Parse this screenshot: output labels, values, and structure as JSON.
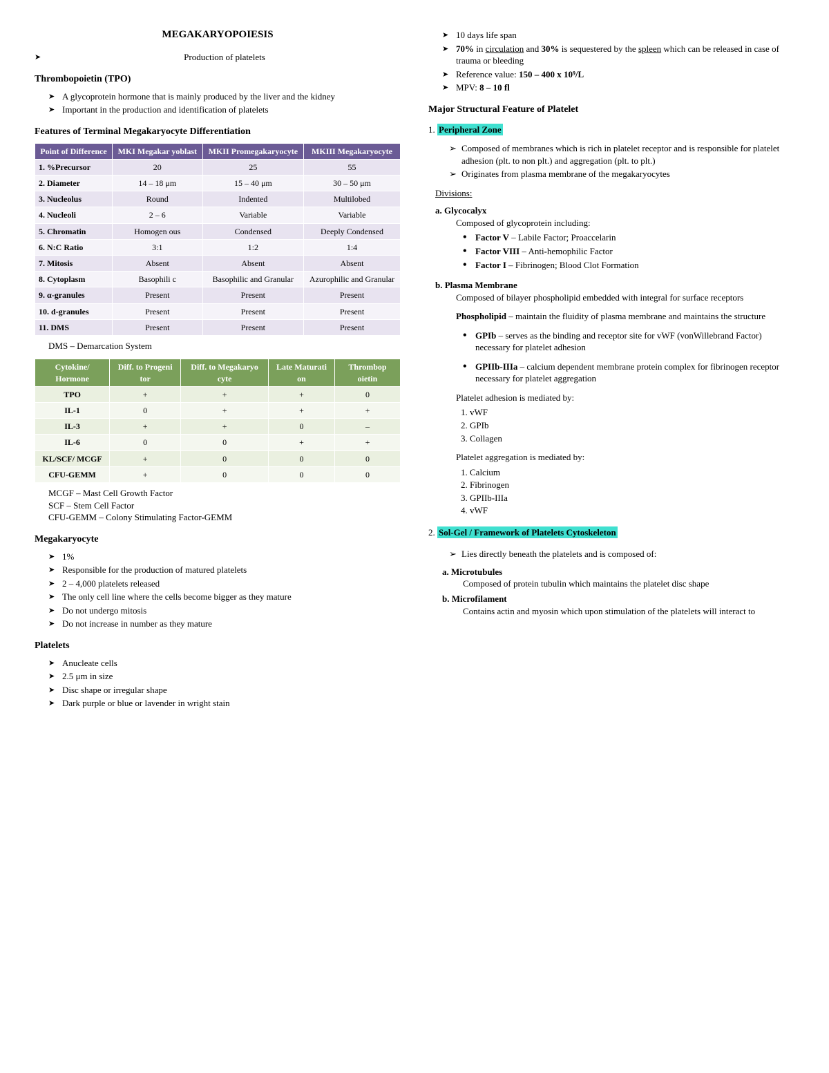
{
  "title": "MEGAKARYOPOIESIS",
  "subtitle": "Production of platelets",
  "tpo": {
    "heading": "Thrombopoietin (TPO)",
    "items": [
      "A glycoprotein hormone that is mainly produced by the liver and the kidney",
      "Important in the production and identification of platelets"
    ]
  },
  "feat_heading": "Features of Terminal Megakaryocyte Differentiation",
  "t1": {
    "headers": [
      "Point of Difference",
      "MKI Megakar yoblast",
      "MKII Promegakaryocyte",
      "MKIII Megakaryocyte"
    ],
    "rows": [
      [
        "1.  %Precursor",
        "20",
        "25",
        "55"
      ],
      [
        "2.  Diameter",
        "14 – 18 μm",
        "15 – 40 μm",
        "30   – 50 μm"
      ],
      [
        "3.  Nucleolus",
        "Round",
        "Indented",
        "Multilobed"
      ],
      [
        "4.  Nucleoli",
        "2 – 6",
        "Variable",
        "Variable"
      ],
      [
        "5.  Chromatin",
        "Homogen ous",
        "Condensed",
        "Deeply Condensed"
      ],
      [
        "6.  N:C Ratio",
        "3:1",
        "1:2",
        "1:4"
      ],
      [
        "7.  Mitosis",
        "Absent",
        "Absent",
        "Absent"
      ],
      [
        "8.  Cytoplasm",
        "Basophili c",
        "Basophilic and Granular",
        "Azurophilic and Granular"
      ],
      [
        "9.  α-granules",
        "Present",
        "Present",
        "Present"
      ],
      [
        "10. d-granules",
        "Present",
        "Present",
        "Present"
      ],
      [
        "11. DMS",
        "Present",
        "Present",
        "Present"
      ]
    ]
  },
  "dms_note": "DMS – Demarcation System",
  "t2": {
    "headers": [
      "Cytokine/ Hormone",
      "Diff. to Progeni tor",
      "Diff. to Megakaryo cyte",
      "Late Maturati on",
      "Thrombop oietin"
    ],
    "rows": [
      [
        "TPO",
        "+",
        "+",
        "+",
        "0"
      ],
      [
        "IL-1",
        "0",
        "+",
        "+",
        "+"
      ],
      [
        "IL-3",
        "+",
        "+",
        "0",
        "–"
      ],
      [
        "IL-6",
        "0",
        "0",
        "+",
        "+"
      ],
      [
        "KL/SCF/ MCGF",
        "+",
        "0",
        "0",
        "0"
      ],
      [
        "CFU-GEMM",
        "+",
        "0",
        "0",
        "0"
      ]
    ]
  },
  "defs": [
    "MCGF – Mast Cell Growth Factor",
    "SCF – Stem Cell Factor",
    "CFU-GEMM – Colony Stimulating Factor-GEMM"
  ],
  "mega": {
    "heading": "Megakaryocyte",
    "items": [
      "1%",
      "Responsible for the production of matured platelets",
      "2 – 4,000 platelets released",
      "The only cell line where the cells become bigger as they mature",
      "Do not undergo mitosis",
      "Do not increase in number as they mature"
    ]
  },
  "platelets": {
    "heading": "Platelets",
    "items": [
      "Anucleate cells",
      "2.5 μm in size",
      "Disc shape or irregular shape",
      "Dark purple or blue or lavender in wright stain"
    ]
  },
  "col2top": [
    "10 days life span",
    "<b>70%</b> in <span class='u'>circulation</span> and <b>30%</b> is sequestered by the <span class='u'>spleen</span> which can be released in case of trauma or bleeding",
    "Reference value: <b>150 – 400 x 10⁹/L</b>",
    "MPV: <b>8 – 10 fl</b>"
  ],
  "msf_heading": "Major Structural Feature of Platelet",
  "pz": {
    "num": "1.",
    "title": "Peripheral Zone",
    "items": [
      "Composed of membranes which is rich in platelet receptor and is responsible for platelet adhesion (plt. to non plt.) and aggregation (plt. to plt.)",
      "Originates from plasma membrane of the megakaryocytes"
    ]
  },
  "divisions": "Divisions:",
  "glyco": {
    "label": "a.  Glycocalyx",
    "desc": "Composed of glycoprotein including:",
    "items": [
      "<b>Factor V</b> – Labile Factor; Proaccelarin",
      "<b>Factor VIII</b> – Anti-hemophilic Factor",
      "<b>Factor I</b> – Fibrinogen; Blood Clot Formation"
    ]
  },
  "plasma": {
    "label": "b.  Plasma Membrane",
    "desc": "Composed of bilayer phospholipid embedded with integral for surface receptors",
    "phos": "<b>Phospholipid</b> – maintain the fluidity of plasma membrane and maintains the structure",
    "items": [
      "<b>GPIb</b> – serves as the binding and receptor site for vWF (vonWillebrand Factor) necessary for platelet adhesion",
      "<b>GPIIb-IIIa</b> – calcium dependent membrane protein complex for fibrinogen receptor necessary for platelet aggregation"
    ]
  },
  "adh": {
    "label": "Platelet adhesion is mediated by:",
    "items": [
      "vWF",
      "GPIb",
      "Collagen"
    ]
  },
  "agg": {
    "label": "Platelet aggregation is mediated by:",
    "items": [
      "Calcium",
      "Fibrinogen",
      "GPIIb-IIIa",
      "vWF"
    ]
  },
  "sg": {
    "num": "2.",
    "title": "Sol-Gel / Framework  of Platelets Cytoskeleton",
    "item": "Lies directly beneath the platelets and is composed of:"
  },
  "micro": [
    {
      "label": "a.  Microtubules",
      "desc": "Composed of protein tubulin which maintains the platelet disc shape"
    },
    {
      "label": "b.  Microfilament",
      "desc": "Contains actin and myosin which upon stimulation of the platelets will interact to"
    }
  ]
}
